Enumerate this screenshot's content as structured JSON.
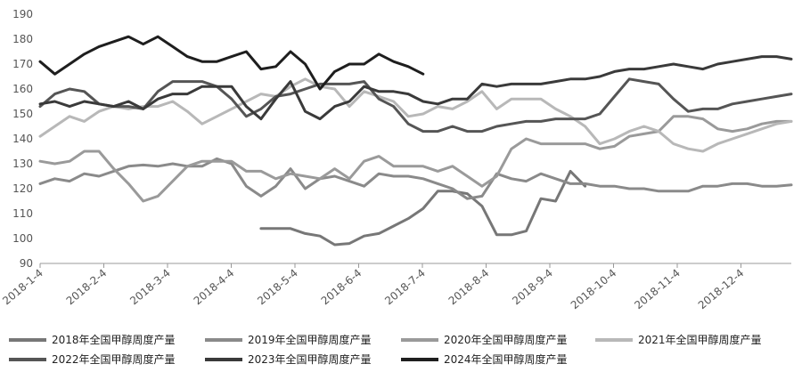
{
  "chart_data": {
    "type": "line",
    "title": "",
    "xlabel": "",
    "ylabel": "",
    "ylim": [
      90,
      190
    ],
    "yticks": [
      "90",
      "100",
      "110",
      "120",
      "130",
      "140",
      "150",
      "160",
      "170",
      "180",
      "190"
    ],
    "xticks": [
      "2018-1-4",
      "2018-2-4",
      "2018-3-4",
      "2018-4-4",
      "2018-5-4",
      "2018-6-4",
      "2018-7-4",
      "2018-8-4",
      "2018-9-4",
      "2018-10-4",
      "2018-11-4",
      "2018-12-4"
    ],
    "grid": "none",
    "legend_position": "bottom",
    "series": [
      {
        "name": "2018年全国甲醇周度产量",
        "color": "#777777",
        "width": 3,
        "values": [
          null,
          null,
          null,
          null,
          null,
          null,
          null,
          null,
          null,
          null,
          null,
          null,
          null,
          null,
          null,
          104,
          104,
          104,
          102,
          101,
          97.5,
          98,
          101,
          102,
          105,
          108,
          112,
          119,
          119,
          118,
          113,
          101.5,
          101.5,
          103,
          116,
          115,
          127,
          121,
          null,
          null,
          null,
          null,
          null,
          null,
          null,
          null,
          null,
          null,
          null,
          null,
          null,
          null
        ]
      },
      {
        "name": "2019年全国甲醇周度产量",
        "color": "#8a8a8a",
        "width": 3,
        "values": [
          122,
          124,
          123,
          126,
          125,
          127,
          129,
          129.5,
          129,
          130,
          129,
          129,
          132,
          130,
          121,
          117,
          121,
          128,
          120,
          124,
          125,
          123,
          121,
          126,
          125,
          125,
          124,
          122,
          120,
          116,
          117,
          126,
          124,
          123,
          126,
          124,
          122,
          122,
          121,
          121,
          120,
          120,
          119,
          119,
          119,
          121,
          121,
          122,
          122,
          121,
          121,
          121.5
        ]
      },
      {
        "name": "2020年全国甲醇周度产量",
        "color": "#9a9a9a",
        "width": 3,
        "values": [
          131,
          130,
          131,
          135,
          135,
          128,
          122,
          115,
          117,
          123,
          129,
          131,
          131,
          131,
          127,
          127,
          124,
          126,
          125,
          124,
          128,
          124,
          131,
          133,
          129,
          129,
          129,
          127,
          129,
          125,
          121,
          125,
          136,
          140,
          138,
          138,
          138,
          138,
          136,
          137,
          141,
          142,
          143,
          149,
          149,
          148,
          144,
          143,
          144,
          146,
          147,
          147
        ]
      },
      {
        "name": "2021年全国甲醇周度产量",
        "color": "#b8b8b8",
        "width": 3,
        "values": [
          141,
          145,
          149,
          147,
          151,
          153,
          152,
          153,
          153,
          155,
          151,
          146,
          149,
          152,
          155,
          158,
          157,
          161,
          164,
          161,
          160,
          153,
          159,
          157,
          155,
          149,
          150,
          153,
          152,
          155,
          159,
          152,
          156,
          156,
          156,
          152,
          149,
          145,
          138,
          140,
          143,
          145,
          143,
          138,
          136,
          135,
          138,
          140,
          142,
          144,
          146,
          147
        ]
      },
      {
        "name": "2022年全国甲醇周度产量",
        "color": "#555555",
        "width": 3,
        "values": [
          153,
          158,
          160,
          159,
          154,
          153,
          153,
          152,
          159,
          163,
          163,
          163,
          161,
          156,
          149,
          152,
          157,
          158,
          160,
          162,
          162,
          162,
          163,
          156,
          153,
          146,
          143,
          143,
          145,
          143,
          143,
          145,
          146,
          147,
          147,
          148,
          148,
          148,
          150,
          157,
          164,
          163,
          162,
          156,
          151,
          152,
          152,
          154,
          155,
          156,
          157,
          158
        ]
      },
      {
        "name": "2023年全国甲醇周度产量",
        "color": "#3a3a3a",
        "width": 3,
        "values": [
          154,
          155,
          153,
          155,
          154,
          153,
          155,
          152,
          156,
          158,
          158,
          161,
          161,
          161,
          153,
          148,
          156,
          163,
          151,
          148,
          153,
          155,
          161,
          159,
          159,
          158,
          155,
          154,
          156,
          156,
          162,
          161,
          162,
          162,
          162,
          163,
          164,
          164,
          165,
          167,
          168,
          168,
          169,
          170,
          169,
          168,
          170,
          171,
          172,
          173,
          173,
          172
        ]
      },
      {
        "name": "2024年全国甲醇周度产量",
        "color": "#1e1e1e",
        "width": 3,
        "values": [
          171,
          166,
          170,
          174,
          177,
          179,
          181,
          178,
          181,
          177,
          173,
          171,
          171,
          173,
          175,
          168,
          169,
          175,
          170,
          160,
          167,
          170,
          170,
          174,
          171,
          169,
          166,
          null,
          null,
          null,
          null,
          null,
          null,
          null,
          null,
          null,
          null,
          null,
          null,
          null,
          null,
          null,
          null,
          null,
          null,
          null,
          null,
          null,
          null,
          null,
          null,
          null
        ]
      }
    ]
  },
  "legend_rows": [
    [
      0,
      1,
      2,
      3
    ],
    [
      4,
      5,
      6
    ]
  ]
}
